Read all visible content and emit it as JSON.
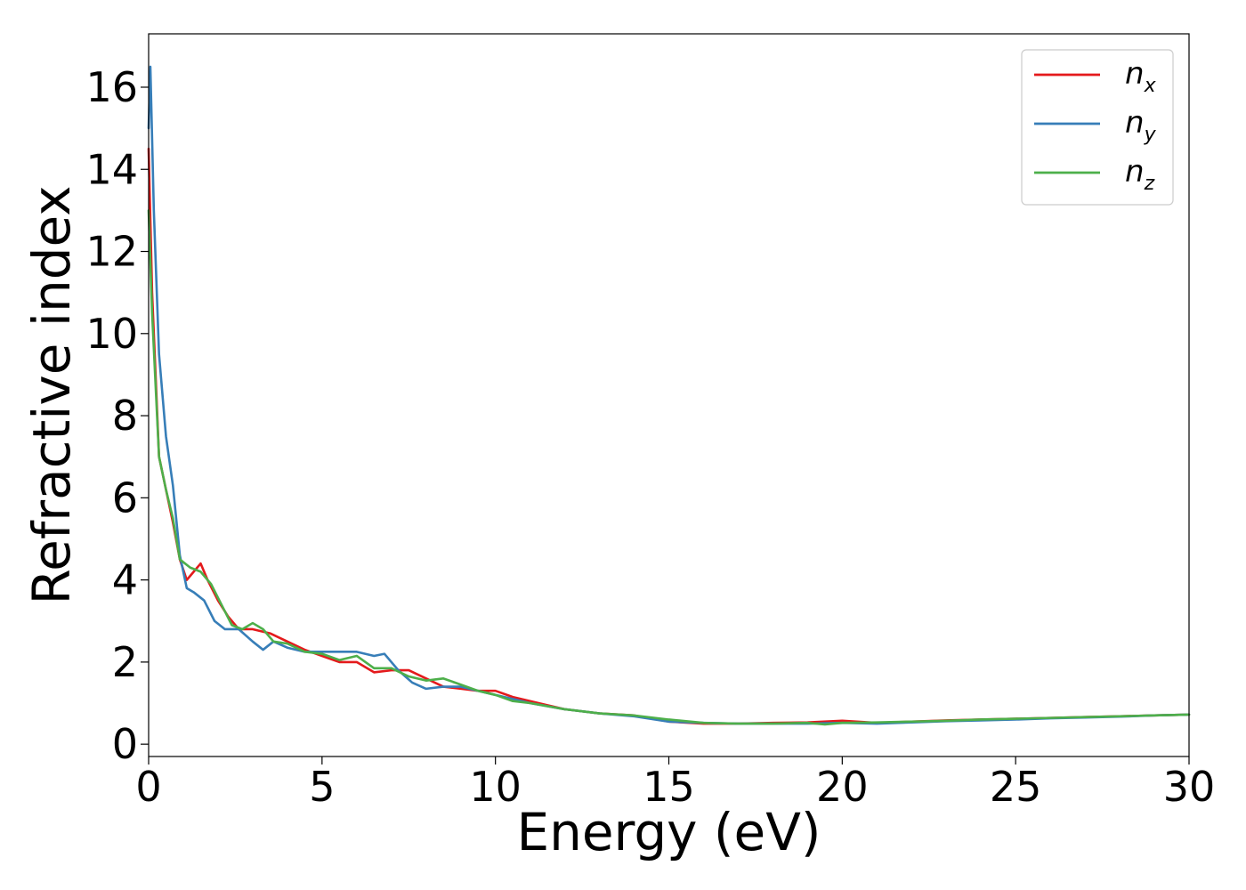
{
  "chart_data": {
    "type": "line",
    "title": "",
    "xlabel": "Energy (eV)",
    "ylabel": "Refractive index",
    "xlim": [
      0,
      30
    ],
    "ylim": [
      -0.3,
      17.3
    ],
    "xticks": [
      0,
      5,
      10,
      15,
      20,
      25,
      30
    ],
    "yticks": [
      0,
      2,
      4,
      6,
      8,
      10,
      12,
      14,
      16
    ],
    "grid": false,
    "legend_position": "top-right",
    "series": [
      {
        "name": "n",
        "subscript": "x",
        "color": "#e41a1c",
        "x": [
          0,
          0.1,
          0.3,
          0.5,
          0.7,
          0.9,
          1.1,
          1.3,
          1.5,
          1.7,
          2.0,
          2.3,
          2.6,
          3.0,
          3.5,
          4.0,
          4.5,
          5.0,
          5.5,
          6.0,
          6.5,
          7.0,
          7.5,
          8.0,
          8.5,
          9.0,
          9.5,
          10.0,
          10.5,
          11.0,
          11.5,
          12.0,
          12.5,
          13.0,
          14.0,
          15.0,
          16.0,
          17.0,
          18.0,
          19.0,
          20.0,
          21.0,
          22.0,
          23.0,
          24.0,
          25.0,
          26.0,
          27.0,
          28.0,
          29.0,
          30.0
        ],
        "values": [
          14.5,
          11.0,
          7.0,
          6.2,
          5.4,
          4.5,
          4.0,
          4.2,
          4.4,
          4.0,
          3.5,
          3.1,
          2.8,
          2.8,
          2.7,
          2.5,
          2.3,
          2.15,
          2.0,
          2.0,
          1.75,
          1.8,
          1.8,
          1.6,
          1.4,
          1.35,
          1.3,
          1.3,
          1.15,
          1.05,
          0.95,
          0.85,
          0.8,
          0.75,
          0.7,
          0.55,
          0.5,
          0.5,
          0.52,
          0.53,
          0.57,
          0.52,
          0.55,
          0.58,
          0.6,
          0.62,
          0.64,
          0.66,
          0.68,
          0.7,
          0.72
        ]
      },
      {
        "name": "n",
        "subscript": "y",
        "color": "#377eb8",
        "x": [
          0,
          0.05,
          0.15,
          0.3,
          0.5,
          0.7,
          0.9,
          1.1,
          1.3,
          1.6,
          1.9,
          2.2,
          2.6,
          3.0,
          3.3,
          3.6,
          4.0,
          4.5,
          5.0,
          5.5,
          6.0,
          6.5,
          6.8,
          7.2,
          7.6,
          8.0,
          8.5,
          9.0,
          9.5,
          10.0,
          10.5,
          11.0,
          12.0,
          13.0,
          14.0,
          15.0,
          16.0,
          17.0,
          18.0,
          19.0,
          20.0,
          21.0,
          22.0,
          23.0,
          24.0,
          25.0,
          26.0,
          27.0,
          28.0,
          29.0,
          30.0
        ],
        "values": [
          15.0,
          16.5,
          13.0,
          9.5,
          7.5,
          6.3,
          4.6,
          3.8,
          3.7,
          3.5,
          3.0,
          2.8,
          2.8,
          2.5,
          2.3,
          2.5,
          2.35,
          2.25,
          2.25,
          2.25,
          2.25,
          2.15,
          2.2,
          1.8,
          1.5,
          1.35,
          1.4,
          1.4,
          1.3,
          1.2,
          1.1,
          1.0,
          0.85,
          0.75,
          0.68,
          0.55,
          0.52,
          0.5,
          0.5,
          0.5,
          0.52,
          0.5,
          0.53,
          0.56,
          0.58,
          0.6,
          0.63,
          0.65,
          0.67,
          0.7,
          0.72
        ]
      },
      {
        "name": "n",
        "subscript": "z",
        "color": "#4daf4a",
        "x": [
          0,
          0.1,
          0.3,
          0.5,
          0.7,
          0.9,
          1.2,
          1.5,
          1.8,
          2.1,
          2.4,
          2.7,
          3.0,
          3.3,
          3.6,
          4.0,
          4.5,
          5.0,
          5.5,
          6.0,
          6.5,
          7.0,
          7.5,
          8.0,
          8.5,
          9.0,
          9.5,
          10.0,
          10.5,
          11.0,
          12.0,
          13.0,
          14.0,
          15.0,
          16.0,
          17.0,
          18.0,
          19.0,
          19.5,
          20.0,
          21.0,
          22.0,
          23.0,
          24.0,
          25.0,
          26.0,
          27.0,
          28.0,
          29.0,
          30.0
        ],
        "values": [
          13.0,
          10.5,
          7.0,
          6.2,
          5.5,
          4.5,
          4.3,
          4.2,
          3.9,
          3.4,
          2.9,
          2.8,
          2.95,
          2.8,
          2.5,
          2.45,
          2.25,
          2.2,
          2.05,
          2.15,
          1.85,
          1.85,
          1.65,
          1.55,
          1.6,
          1.45,
          1.3,
          1.2,
          1.05,
          1.0,
          0.85,
          0.75,
          0.7,
          0.6,
          0.52,
          0.5,
          0.5,
          0.52,
          0.48,
          0.52,
          0.53,
          0.55,
          0.57,
          0.6,
          0.62,
          0.64,
          0.66,
          0.68,
          0.7,
          0.72
        ]
      }
    ]
  }
}
